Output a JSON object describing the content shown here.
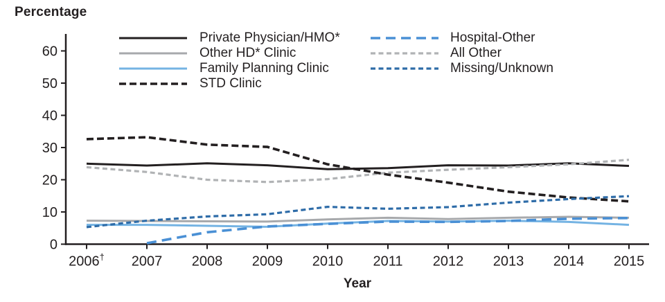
{
  "chart_data": {
    "type": "line",
    "title": "",
    "ylabel": "Percentage",
    "xlabel": "Year",
    "x": [
      2006,
      2007,
      2008,
      2009,
      2010,
      2011,
      2012,
      2013,
      2014,
      2015
    ],
    "x_tick_labels": [
      "2006†",
      "2007",
      "2008",
      "2009",
      "2010",
      "2011",
      "2012",
      "2013",
      "2014",
      "2015"
    ],
    "y_ticks": [
      0,
      10,
      20,
      30,
      40,
      50,
      60
    ],
    "ylim": [
      0,
      62
    ],
    "grid": false,
    "legend_position": "top",
    "axis_color": "#231f20",
    "series": [
      {
        "name": "Other HD* Clinic",
        "color": "#a7a9ac",
        "style": "solid",
        "values": [
          7.3,
          7.2,
          7.1,
          7.0,
          7.7,
          8.2,
          7.8,
          8.2,
          8.5,
          8.2
        ]
      },
      {
        "name": "Family Planning Clinic",
        "color": "#74b3e3",
        "style": "solid",
        "values": [
          6.0,
          6.0,
          5.7,
          5.4,
          6.4,
          7.2,
          7.0,
          7.3,
          6.9,
          6.0
        ]
      },
      {
        "name": "Private Physician/HMO*",
        "color": "#231f20",
        "style": "solid",
        "values": [
          25.0,
          24.4,
          25.1,
          24.5,
          23.3,
          23.6,
          24.5,
          24.4,
          25.1,
          24.3
        ]
      },
      {
        "name": "All Other",
        "color": "#b1b3b5",
        "style": "small-dash",
        "values": [
          23.9,
          22.4,
          20.0,
          19.3,
          20.2,
          22.2,
          23.1,
          23.9,
          24.8,
          26.2
        ]
      },
      {
        "name": "STD Clinic",
        "color": "#231f20",
        "style": "dash",
        "values": [
          32.6,
          33.2,
          30.9,
          30.2,
          24.8,
          21.6,
          19.1,
          16.3,
          14.5,
          13.3
        ]
      },
      {
        "name": "Hospital-Other",
        "color": "#4a90d5",
        "style": "long-dash",
        "values": [
          null,
          0.3,
          3.7,
          5.5,
          6.3,
          7.0,
          6.9,
          7.2,
          7.9,
          8.1
        ]
      },
      {
        "name": "Missing/Unknown",
        "color": "#2e6ca8",
        "style": "small-dash",
        "values": [
          5.3,
          7.3,
          8.6,
          9.3,
          11.6,
          11.0,
          11.5,
          12.9,
          14.0,
          14.9
        ]
      }
    ]
  }
}
